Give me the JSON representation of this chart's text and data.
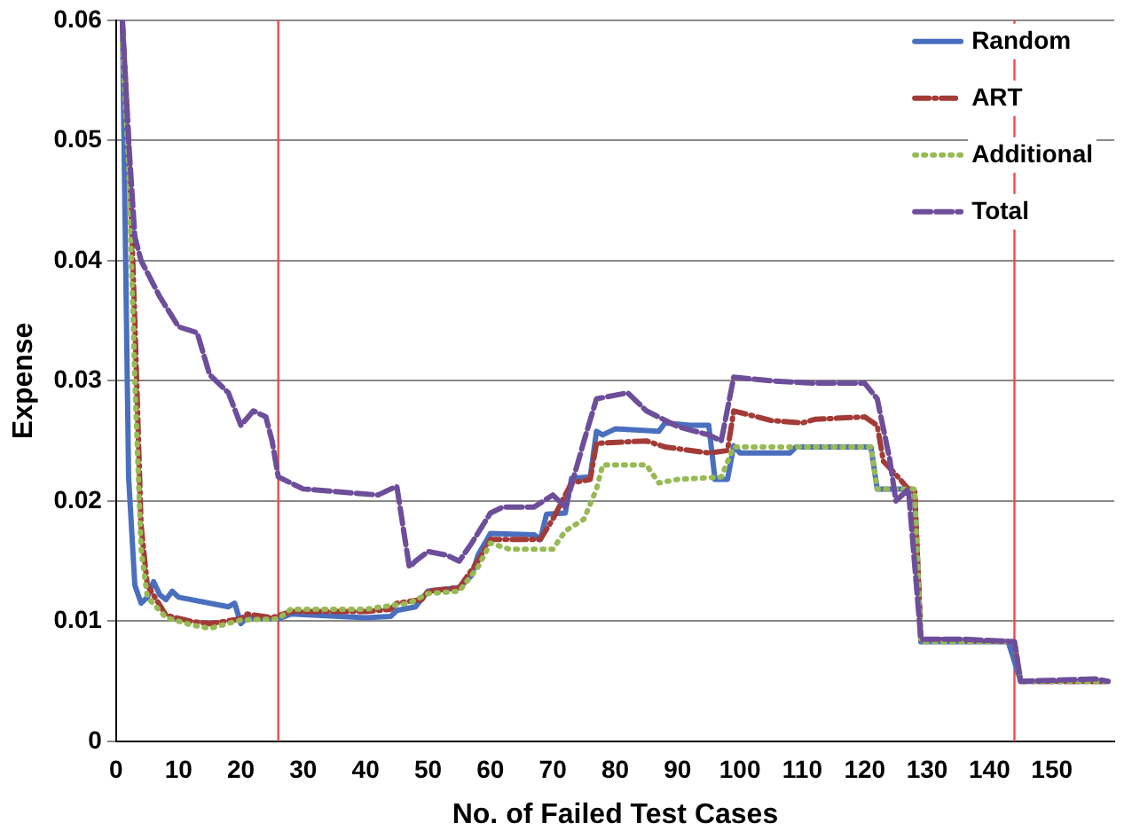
{
  "chart_data": {
    "type": "line",
    "xlabel": "No. of Failed Test Cases",
    "ylabel": "Expense",
    "xlim": [
      0,
      160
    ],
    "xticks": [
      0,
      10,
      20,
      30,
      40,
      50,
      60,
      70,
      80,
      90,
      100,
      110,
      120,
      130,
      140,
      150
    ],
    "ylim": [
      0,
      0.06
    ],
    "yticks": [
      0,
      0.01,
      0.02,
      0.03,
      0.04,
      0.05,
      0.06
    ],
    "grid": "y",
    "legend": "top right",
    "marker": "none",
    "ref_lines": [
      {
        "axis": "x",
        "value": 26,
        "color": "#e84c4c"
      },
      {
        "axis": "x",
        "value": 144,
        "color": "#e84c4c"
      }
    ],
    "series": [
      {
        "name": "Random",
        "color": "#4a6fbf",
        "line_style": "solid",
        "x": [
          1,
          2,
          3,
          4,
          5,
          6,
          7,
          8,
          9,
          10,
          18,
          19,
          20,
          21,
          26,
          28,
          40,
          44,
          45,
          48,
          50,
          55,
          57,
          58,
          60,
          67,
          68,
          69,
          72,
          73,
          76,
          77,
          78,
          80,
          87,
          88,
          92,
          95,
          96,
          98,
          99,
          100,
          108,
          109,
          121,
          122,
          127,
          128,
          129,
          143,
          145,
          159
        ],
        "values": [
          0.06,
          0.022,
          0.013,
          0.0115,
          0.012,
          0.0133,
          0.0122,
          0.0118,
          0.0125,
          0.012,
          0.0112,
          0.0115,
          0.0098,
          0.0103,
          0.0102,
          0.0106,
          0.0103,
          0.0104,
          0.0109,
          0.0112,
          0.0125,
          0.0128,
          0.0138,
          0.0155,
          0.0173,
          0.0172,
          0.0168,
          0.0189,
          0.019,
          0.0219,
          0.022,
          0.0258,
          0.0255,
          0.026,
          0.0258,
          0.0265,
          0.0263,
          0.0263,
          0.0218,
          0.0218,
          0.0246,
          0.024,
          0.024,
          0.0245,
          0.0245,
          0.021,
          0.021,
          0.0207,
          0.0083,
          0.0083,
          0.005,
          0.005
        ]
      },
      {
        "name": "ART",
        "color": "#a33b36",
        "line_style": "dashdot",
        "x": [
          1,
          2,
          3,
          4,
          5,
          8,
          12,
          15,
          20,
          21,
          25,
          28,
          40,
          44,
          45,
          49,
          50,
          55,
          58,
          60,
          68,
          70,
          73,
          76,
          77,
          85,
          88,
          95,
          98,
          99,
          105,
          110,
          112,
          120,
          122,
          123,
          125,
          127,
          128,
          129,
          144,
          145,
          159
        ],
        "values": [
          0.06,
          0.05,
          0.035,
          0.018,
          0.013,
          0.0105,
          0.01,
          0.0098,
          0.0102,
          0.0106,
          0.0103,
          0.0108,
          0.0108,
          0.011,
          0.0115,
          0.0118,
          0.0125,
          0.0128,
          0.015,
          0.0168,
          0.0168,
          0.0185,
          0.0215,
          0.0218,
          0.0248,
          0.025,
          0.0245,
          0.024,
          0.0242,
          0.0275,
          0.0267,
          0.0265,
          0.0268,
          0.027,
          0.0263,
          0.0233,
          0.0222,
          0.021,
          0.021,
          0.0085,
          0.0083,
          0.005,
          0.005
        ]
      },
      {
        "name": "Additional",
        "color": "#98b954",
        "line_style": "dotted",
        "x": [
          1,
          2,
          3,
          4,
          5,
          8,
          12,
          15,
          20,
          26,
          28,
          40,
          44,
          47,
          50,
          55,
          58,
          60,
          63,
          70,
          72,
          75,
          77,
          78,
          85,
          87,
          90,
          97,
          99,
          121,
          122,
          128,
          129,
          144,
          145,
          159
        ],
        "values": [
          0.058,
          0.048,
          0.03,
          0.016,
          0.012,
          0.0103,
          0.0097,
          0.0094,
          0.0101,
          0.0102,
          0.011,
          0.011,
          0.0113,
          0.0115,
          0.0123,
          0.0125,
          0.0145,
          0.0165,
          0.016,
          0.016,
          0.0175,
          0.0185,
          0.021,
          0.023,
          0.023,
          0.0215,
          0.0218,
          0.022,
          0.0245,
          0.0245,
          0.021,
          0.021,
          0.0083,
          0.0083,
          0.005,
          0.005
        ]
      },
      {
        "name": "Total",
        "color": "#6d4e9a",
        "line_style": "dashed",
        "x": [
          1,
          2,
          3,
          4,
          7,
          10,
          13,
          15,
          17,
          18,
          20,
          22,
          24,
          25,
          26,
          28,
          30,
          35,
          42,
          44,
          45,
          47,
          48,
          50,
          53,
          55,
          57,
          60,
          62,
          67,
          70,
          72,
          75,
          77,
          82,
          85,
          90,
          95,
          97,
          99,
          105,
          112,
          120,
          122,
          124,
          125,
          127,
          129,
          136,
          144,
          145,
          157,
          159
        ],
        "values": [
          0.06,
          0.05,
          0.042,
          0.04,
          0.037,
          0.0345,
          0.034,
          0.0305,
          0.0295,
          0.029,
          0.0263,
          0.0275,
          0.027,
          0.025,
          0.022,
          0.0215,
          0.021,
          0.0208,
          0.0205,
          0.021,
          0.0212,
          0.0145,
          0.015,
          0.0158,
          0.0155,
          0.015,
          0.0165,
          0.019,
          0.0195,
          0.0195,
          0.0205,
          0.0195,
          0.025,
          0.0285,
          0.029,
          0.0275,
          0.0262,
          0.0255,
          0.025,
          0.0303,
          0.03,
          0.0298,
          0.0298,
          0.0285,
          0.0235,
          0.02,
          0.021,
          0.0085,
          0.0085,
          0.0083,
          0.005,
          0.0052,
          0.005
        ]
      }
    ]
  }
}
